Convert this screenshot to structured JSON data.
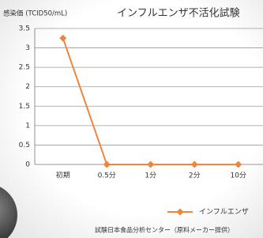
{
  "chart_data": {
    "type": "line",
    "title": "インフルエンザ不活化試験",
    "y_label": "感染価 (TCID50/mL)",
    "categories": [
      "初期",
      "0.5分",
      "1分",
      "2分",
      "10分"
    ],
    "series": [
      {
        "name": "インフルエンザ",
        "color": "#f0853a",
        "values": [
          3.25,
          0,
          0,
          0,
          0
        ]
      }
    ],
    "ylim": [
      0,
      3.5
    ],
    "yticks": [
      0,
      0.5,
      1,
      1.5,
      2,
      2.5,
      3,
      3.5
    ],
    "grid": true,
    "legend": "bottom-right",
    "source": "試験日本食品分析センター（原料メーカー提供）"
  }
}
